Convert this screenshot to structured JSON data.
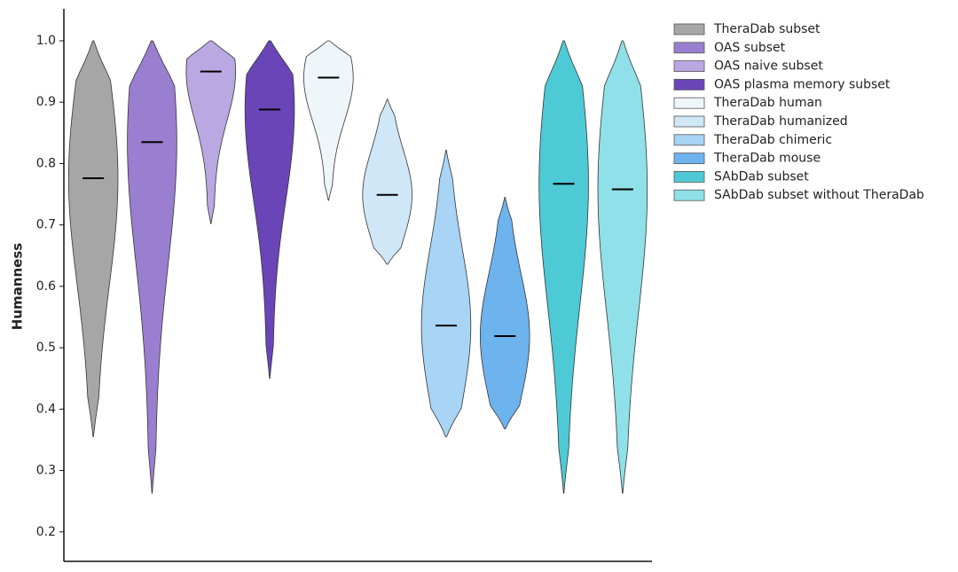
{
  "chart_data": {
    "type": "violin",
    "y_label": "Humanness",
    "ylim": [
      0.152,
      1.052
    ],
    "yticks": [
      0.2,
      0.3,
      0.4,
      0.5,
      0.6,
      0.7,
      0.8,
      0.9,
      {
        "value": 1.0,
        "label": "1.0"
      }
    ],
    "legend": "upper right",
    "series": [
      {
        "name": "TheraDab subset",
        "color": "#a6a6a6",
        "min": 0.355,
        "max": 1.0,
        "median": 0.776
      },
      {
        "name": "OAS subset",
        "color": "#9a7fd0",
        "min": 0.263,
        "max": 1.0,
        "median": 0.835
      },
      {
        "name": "OAS naive subset",
        "color": "#b9a8e2",
        "min": 0.702,
        "max": 1.0,
        "median": 0.95
      },
      {
        "name": "OAS plasma memory subset",
        "color": "#6a45b8",
        "min": 0.45,
        "max": 1.0,
        "median": 0.888
      },
      {
        "name": "TheraDab human",
        "color": "#eef6fa",
        "min": 0.74,
        "max": 1.0,
        "median": 0.94
      },
      {
        "name": "TheraDab humanized",
        "color": "#cfe7f6",
        "min": 0.636,
        "max": 0.905,
        "median": 0.749
      },
      {
        "name": "TheraDab chimeric",
        "color": "#a8d4f5",
        "min": 0.355,
        "max": 0.822,
        "median": 0.536
      },
      {
        "name": "TheraDab mouse",
        "color": "#6db3ee",
        "min": 0.368,
        "max": 0.745,
        "median": 0.519
      },
      {
        "name": "SAbDab subset",
        "color": "#4ecad6",
        "min": 0.263,
        "max": 1.0,
        "median": 0.767
      },
      {
        "name": "SAbDab subset without TheraDab",
        "color": "#8fe0e8",
        "min": 0.263,
        "max": 1.0,
        "median": 0.758
      }
    ]
  }
}
